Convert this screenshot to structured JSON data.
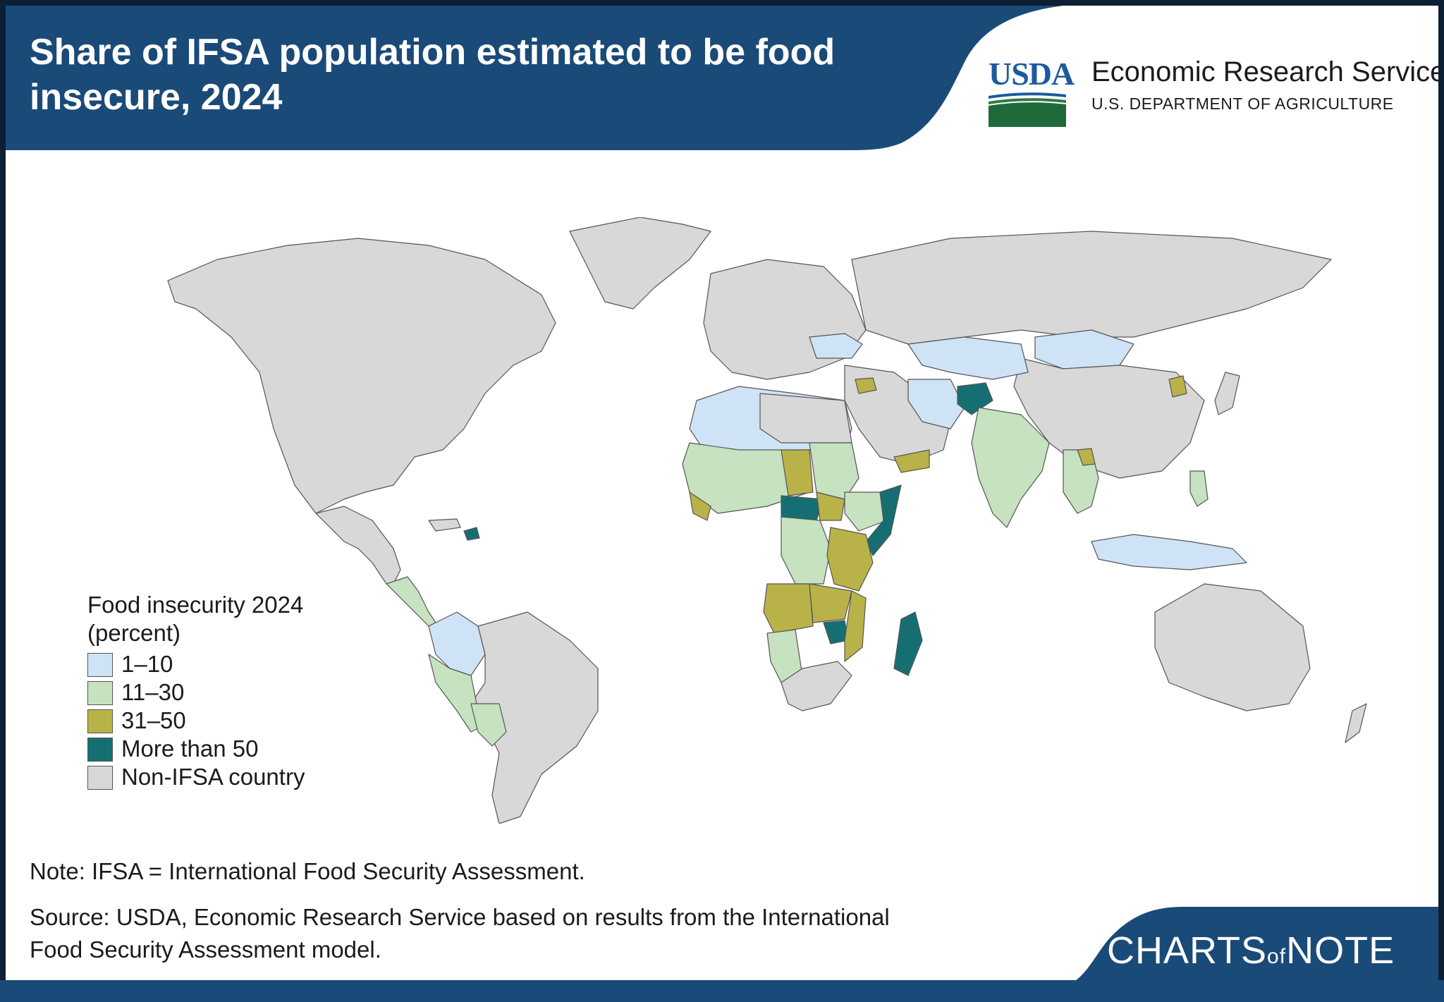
{
  "header": {
    "title": "Share of IFSA population estimated to be food insecure, 2024",
    "org_logo": "USDA",
    "org_name": "Economic Research Service",
    "org_dept": "U.S. DEPARTMENT OF AGRICULTURE"
  },
  "legend": {
    "title": "Food insecurity 2024 (percent)",
    "items": [
      {
        "label": "1–10",
        "color": "#cfe3f6"
      },
      {
        "label": "11–30",
        "color": "#c6e2c0"
      },
      {
        "label": "31–50",
        "color": "#b9b248"
      },
      {
        "label": "More than 50",
        "color": "#156f72"
      },
      {
        "label": "Non-IFSA country",
        "color": "#d8d8d8"
      }
    ]
  },
  "note": "Note: IFSA = International Food Security Assessment.",
  "source": "Source: USDA, Economic Research Service based on results from the International Food Security Assessment model.",
  "footer": {
    "brand_part1": "CHARTS",
    "brand_part2": "of",
    "brand_part3": "NOTE"
  },
  "colors": {
    "header_navy": "#1a4a78",
    "frame_dark": "#0c1f33",
    "non_ifsa": "#d8d8d8",
    "low": "#cfe3f6",
    "moderate": "#c6e2c0",
    "high": "#b9b248",
    "very_high": "#156f72"
  }
}
